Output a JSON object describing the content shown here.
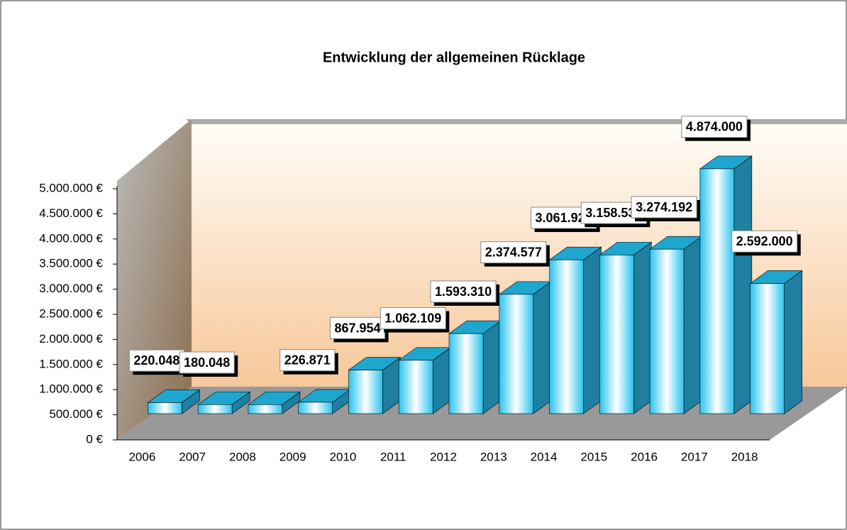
{
  "chart_data": {
    "type": "bar3d",
    "title": "Entwicklung der allgemeinen Rücklage",
    "categories": [
      "2006",
      "2007",
      "2008",
      "2009",
      "2010",
      "2011",
      "2012",
      "2013",
      "2014",
      "2015",
      "2016",
      "2017",
      "2018"
    ],
    "values": [
      220048,
      180048,
      180048,
      226871,
      867954,
      1062109,
      1593310,
      2374577,
      3061925,
      3158538,
      3274192,
      4874000,
      2592000
    ],
    "value_labels": [
      "220.048",
      "180.048",
      null,
      "226.871",
      "867.954",
      "1.062.109",
      "1.593.310",
      "2.374.577",
      "3.061.925",
      "3.158.538",
      "3.274.192",
      "4.874.000",
      "2.592.000"
    ],
    "color": "#29b6e0",
    "ylim": [
      0,
      5000000
    ],
    "yticks": [
      {
        "value": 0,
        "label": "0 €"
      },
      {
        "value": 500000,
        "label": "500.000 €"
      },
      {
        "value": 1000000,
        "label": "1.000.000 €"
      },
      {
        "value": 1500000,
        "label": "1.500.000 €"
      },
      {
        "value": 2000000,
        "label": "2.000.000 €"
      },
      {
        "value": 2500000,
        "label": "2.500.000 €"
      },
      {
        "value": 3000000,
        "label": "3.000.000 €"
      },
      {
        "value": 3500000,
        "label": "3.500.000 €"
      },
      {
        "value": 4000000,
        "label": "4.000.000 €"
      },
      {
        "value": 4500000,
        "label": "4.500.000 €"
      },
      {
        "value": 5000000,
        "label": "5.000.000 €"
      }
    ]
  }
}
